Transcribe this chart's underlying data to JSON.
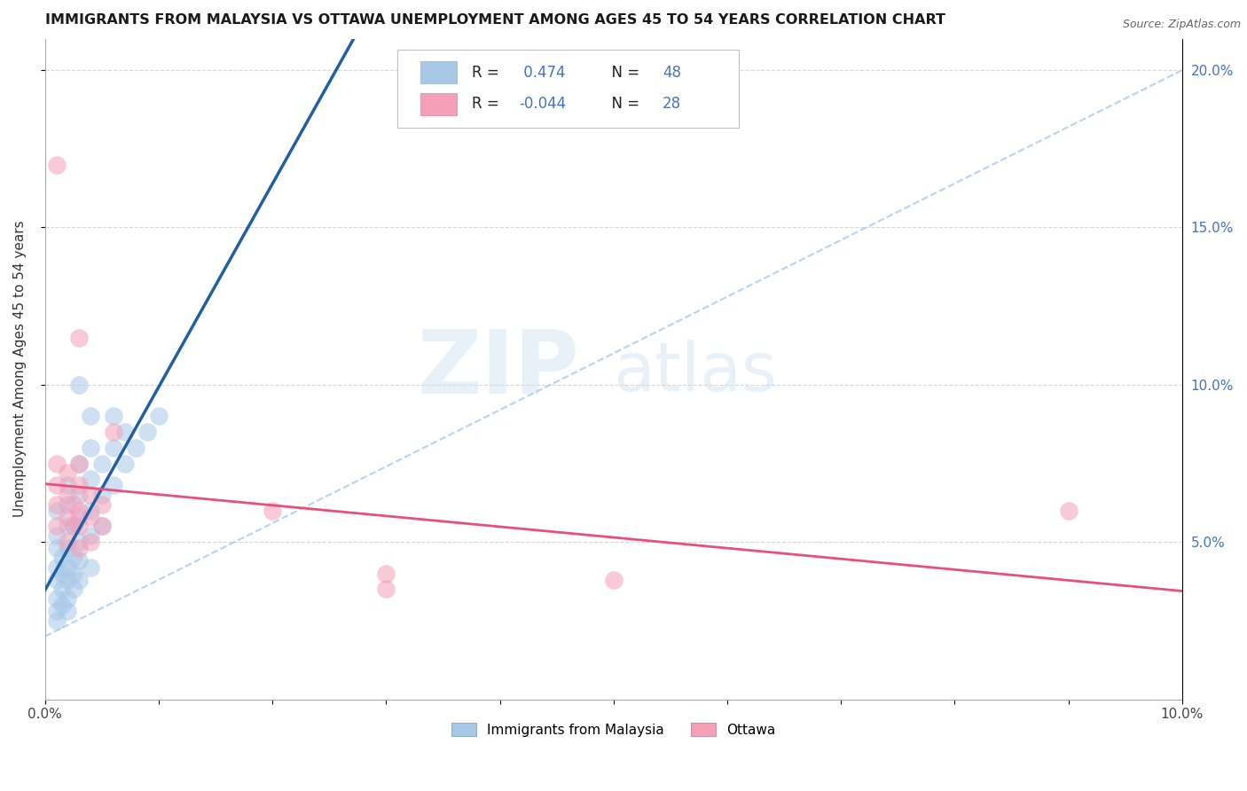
{
  "title": "IMMIGRANTS FROM MALAYSIA VS OTTAWA UNEMPLOYMENT AMONG AGES 45 TO 54 YEARS CORRELATION CHART",
  "source": "Source: ZipAtlas.com",
  "ylabel": "Unemployment Among Ages 45 to 54 years",
  "xlim": [
    0.0,
    0.1
  ],
  "ylim": [
    0.0,
    0.21
  ],
  "watermark_zip": "ZIP",
  "watermark_atlas": "atlas",
  "blue_color": "#a8c8e8",
  "pink_color": "#f4a0b8",
  "blue_line_color": "#2060a0",
  "pink_line_color": "#e8507a",
  "blue_dash_color": "#a8c8e8",
  "blue_points": [
    [
      0.001,
      0.025
    ],
    [
      0.001,
      0.028
    ],
    [
      0.001,
      0.032
    ],
    [
      0.001,
      0.038
    ],
    [
      0.001,
      0.042
    ],
    [
      0.001,
      0.048
    ],
    [
      0.001,
      0.052
    ],
    [
      0.001,
      0.06
    ],
    [
      0.0015,
      0.03
    ],
    [
      0.0015,
      0.035
    ],
    [
      0.0015,
      0.04
    ],
    [
      0.0015,
      0.045
    ],
    [
      0.002,
      0.028
    ],
    [
      0.002,
      0.032
    ],
    [
      0.002,
      0.038
    ],
    [
      0.002,
      0.042
    ],
    [
      0.002,
      0.048
    ],
    [
      0.002,
      0.055
    ],
    [
      0.002,
      0.062
    ],
    [
      0.002,
      0.068
    ],
    [
      0.0025,
      0.035
    ],
    [
      0.0025,
      0.04
    ],
    [
      0.0025,
      0.045
    ],
    [
      0.0025,
      0.055
    ],
    [
      0.003,
      0.038
    ],
    [
      0.003,
      0.044
    ],
    [
      0.003,
      0.05
    ],
    [
      0.003,
      0.058
    ],
    [
      0.003,
      0.065
    ],
    [
      0.003,
      0.075
    ],
    [
      0.003,
      0.1
    ],
    [
      0.004,
      0.042
    ],
    [
      0.004,
      0.052
    ],
    [
      0.004,
      0.06
    ],
    [
      0.004,
      0.07
    ],
    [
      0.004,
      0.08
    ],
    [
      0.004,
      0.09
    ],
    [
      0.005,
      0.055
    ],
    [
      0.005,
      0.065
    ],
    [
      0.005,
      0.075
    ],
    [
      0.006,
      0.068
    ],
    [
      0.006,
      0.08
    ],
    [
      0.006,
      0.09
    ],
    [
      0.007,
      0.075
    ],
    [
      0.007,
      0.085
    ],
    [
      0.008,
      0.08
    ],
    [
      0.009,
      0.085
    ],
    [
      0.01,
      0.09
    ]
  ],
  "pink_points": [
    [
      0.001,
      0.055
    ],
    [
      0.001,
      0.062
    ],
    [
      0.001,
      0.068
    ],
    [
      0.001,
      0.075
    ],
    [
      0.001,
      0.17
    ],
    [
      0.002,
      0.05
    ],
    [
      0.002,
      0.058
    ],
    [
      0.002,
      0.065
    ],
    [
      0.002,
      0.072
    ],
    [
      0.0025,
      0.055
    ],
    [
      0.0025,
      0.062
    ],
    [
      0.003,
      0.048
    ],
    [
      0.003,
      0.055
    ],
    [
      0.003,
      0.06
    ],
    [
      0.003,
      0.068
    ],
    [
      0.003,
      0.075
    ],
    [
      0.003,
      0.115
    ],
    [
      0.004,
      0.05
    ],
    [
      0.004,
      0.058
    ],
    [
      0.004,
      0.065
    ],
    [
      0.005,
      0.055
    ],
    [
      0.005,
      0.062
    ],
    [
      0.006,
      0.085
    ],
    [
      0.02,
      0.06
    ],
    [
      0.03,
      0.04
    ],
    [
      0.03,
      0.035
    ],
    [
      0.05,
      0.038
    ],
    [
      0.09,
      0.06
    ]
  ]
}
